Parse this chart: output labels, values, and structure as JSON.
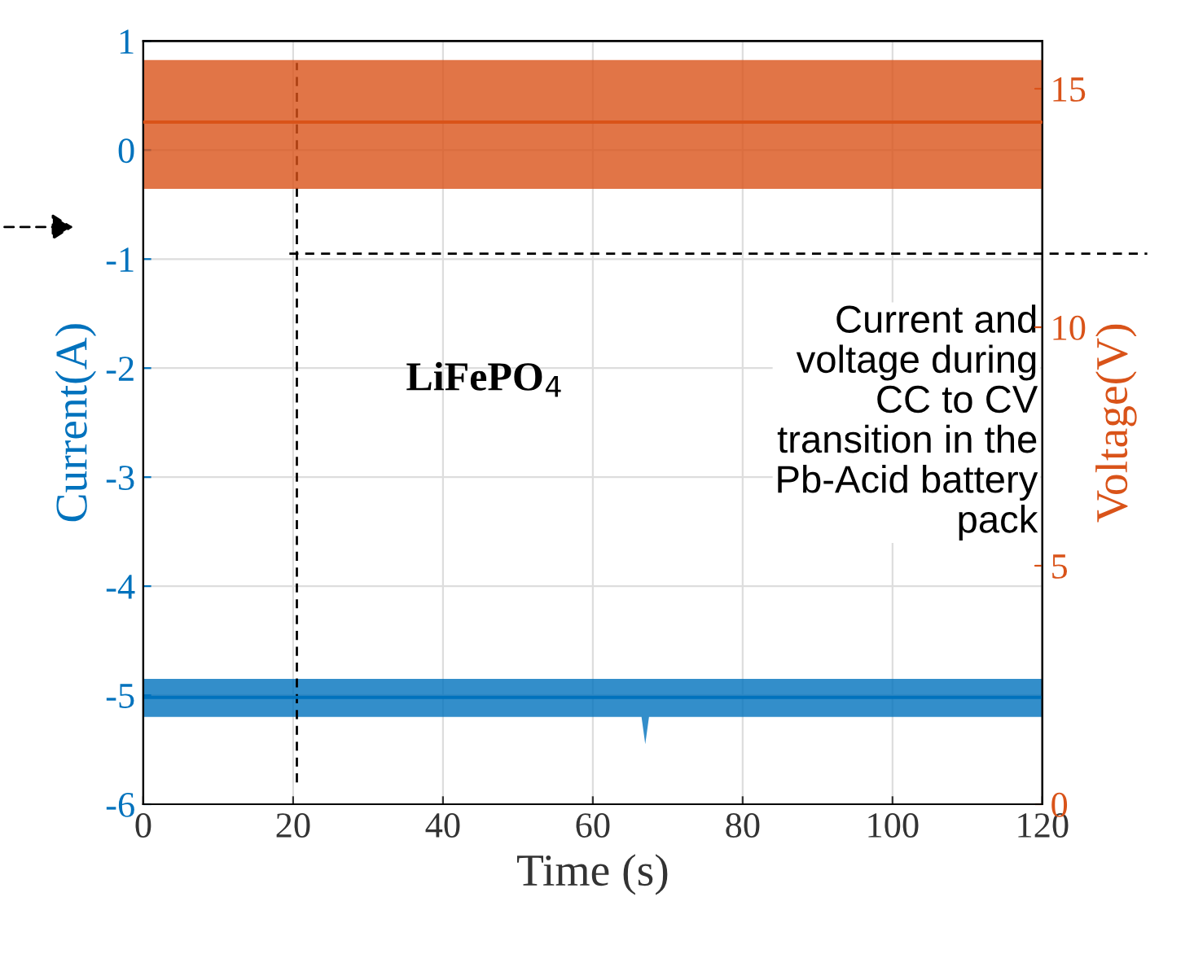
{
  "chart_data": {
    "type": "line",
    "xlabel": "Time (s)",
    "ylabel": "Current(A)",
    "y2label": "Voltage(V)",
    "xlim": [
      0,
      120
    ],
    "xticks": [
      0,
      20,
      40,
      60,
      80,
      100,
      120
    ],
    "ylim": [
      -6,
      1
    ],
    "yticks": [
      -6,
      -5,
      -4,
      -3,
      -2,
      -1,
      0,
      1
    ],
    "y2lim": [
      0,
      16
    ],
    "y2ticks": [
      0,
      5,
      10,
      15
    ],
    "grid": true,
    "marker": "none",
    "line_style": "solid",
    "series": [
      {
        "color": "#0072bd",
        "x": [
          0,
          20,
          40,
          60,
          66.5,
          67,
          67.5,
          80,
          100,
          120
        ],
        "values": [
          -5.02,
          -5.02,
          -5.02,
          -5.02,
          -5.02,
          -5.02,
          -5.02,
          -5.02,
          -5.02,
          -5.02
        ],
        "lower": [
          -5.2,
          -5.2,
          -5.2,
          -5.2,
          -5.2,
          -5.45,
          -5.2,
          -5.2,
          -5.2,
          -5.2
        ],
        "upper": [
          -4.85,
          -4.85,
          -4.85,
          -4.85,
          -4.85,
          -4.85,
          -4.85,
          -4.85,
          -4.85,
          -4.85
        ]
      },
      {
        "color": "#d95319",
        "axis": "y2",
        "x": [
          0,
          20,
          40,
          60,
          80,
          100,
          120
        ],
        "values": [
          14.3,
          14.3,
          14.3,
          14.3,
          14.3,
          14.3,
          14.3
        ],
        "lower": [
          12.9,
          12.9,
          12.9,
          12.9,
          12.9,
          12.9,
          12.9
        ],
        "upper": [
          15.6,
          15.6,
          15.6,
          15.6,
          15.6,
          15.6,
          15.6
        ]
      }
    ],
    "ref_lines": [
      {
        "axis": "x",
        "value": 20.5,
        "color": "#000000",
        "line_style": "dashed"
      },
      {
        "axis": "y",
        "value": -0.95,
        "color": "#000000",
        "line_style": "dashed"
      }
    ],
    "annotations": [
      "LiFePO$_{4}$",
      "Current and\nvoltage during\nCC to CV\ntransition in the\nPb-Acid battery\npack"
    ]
  }
}
